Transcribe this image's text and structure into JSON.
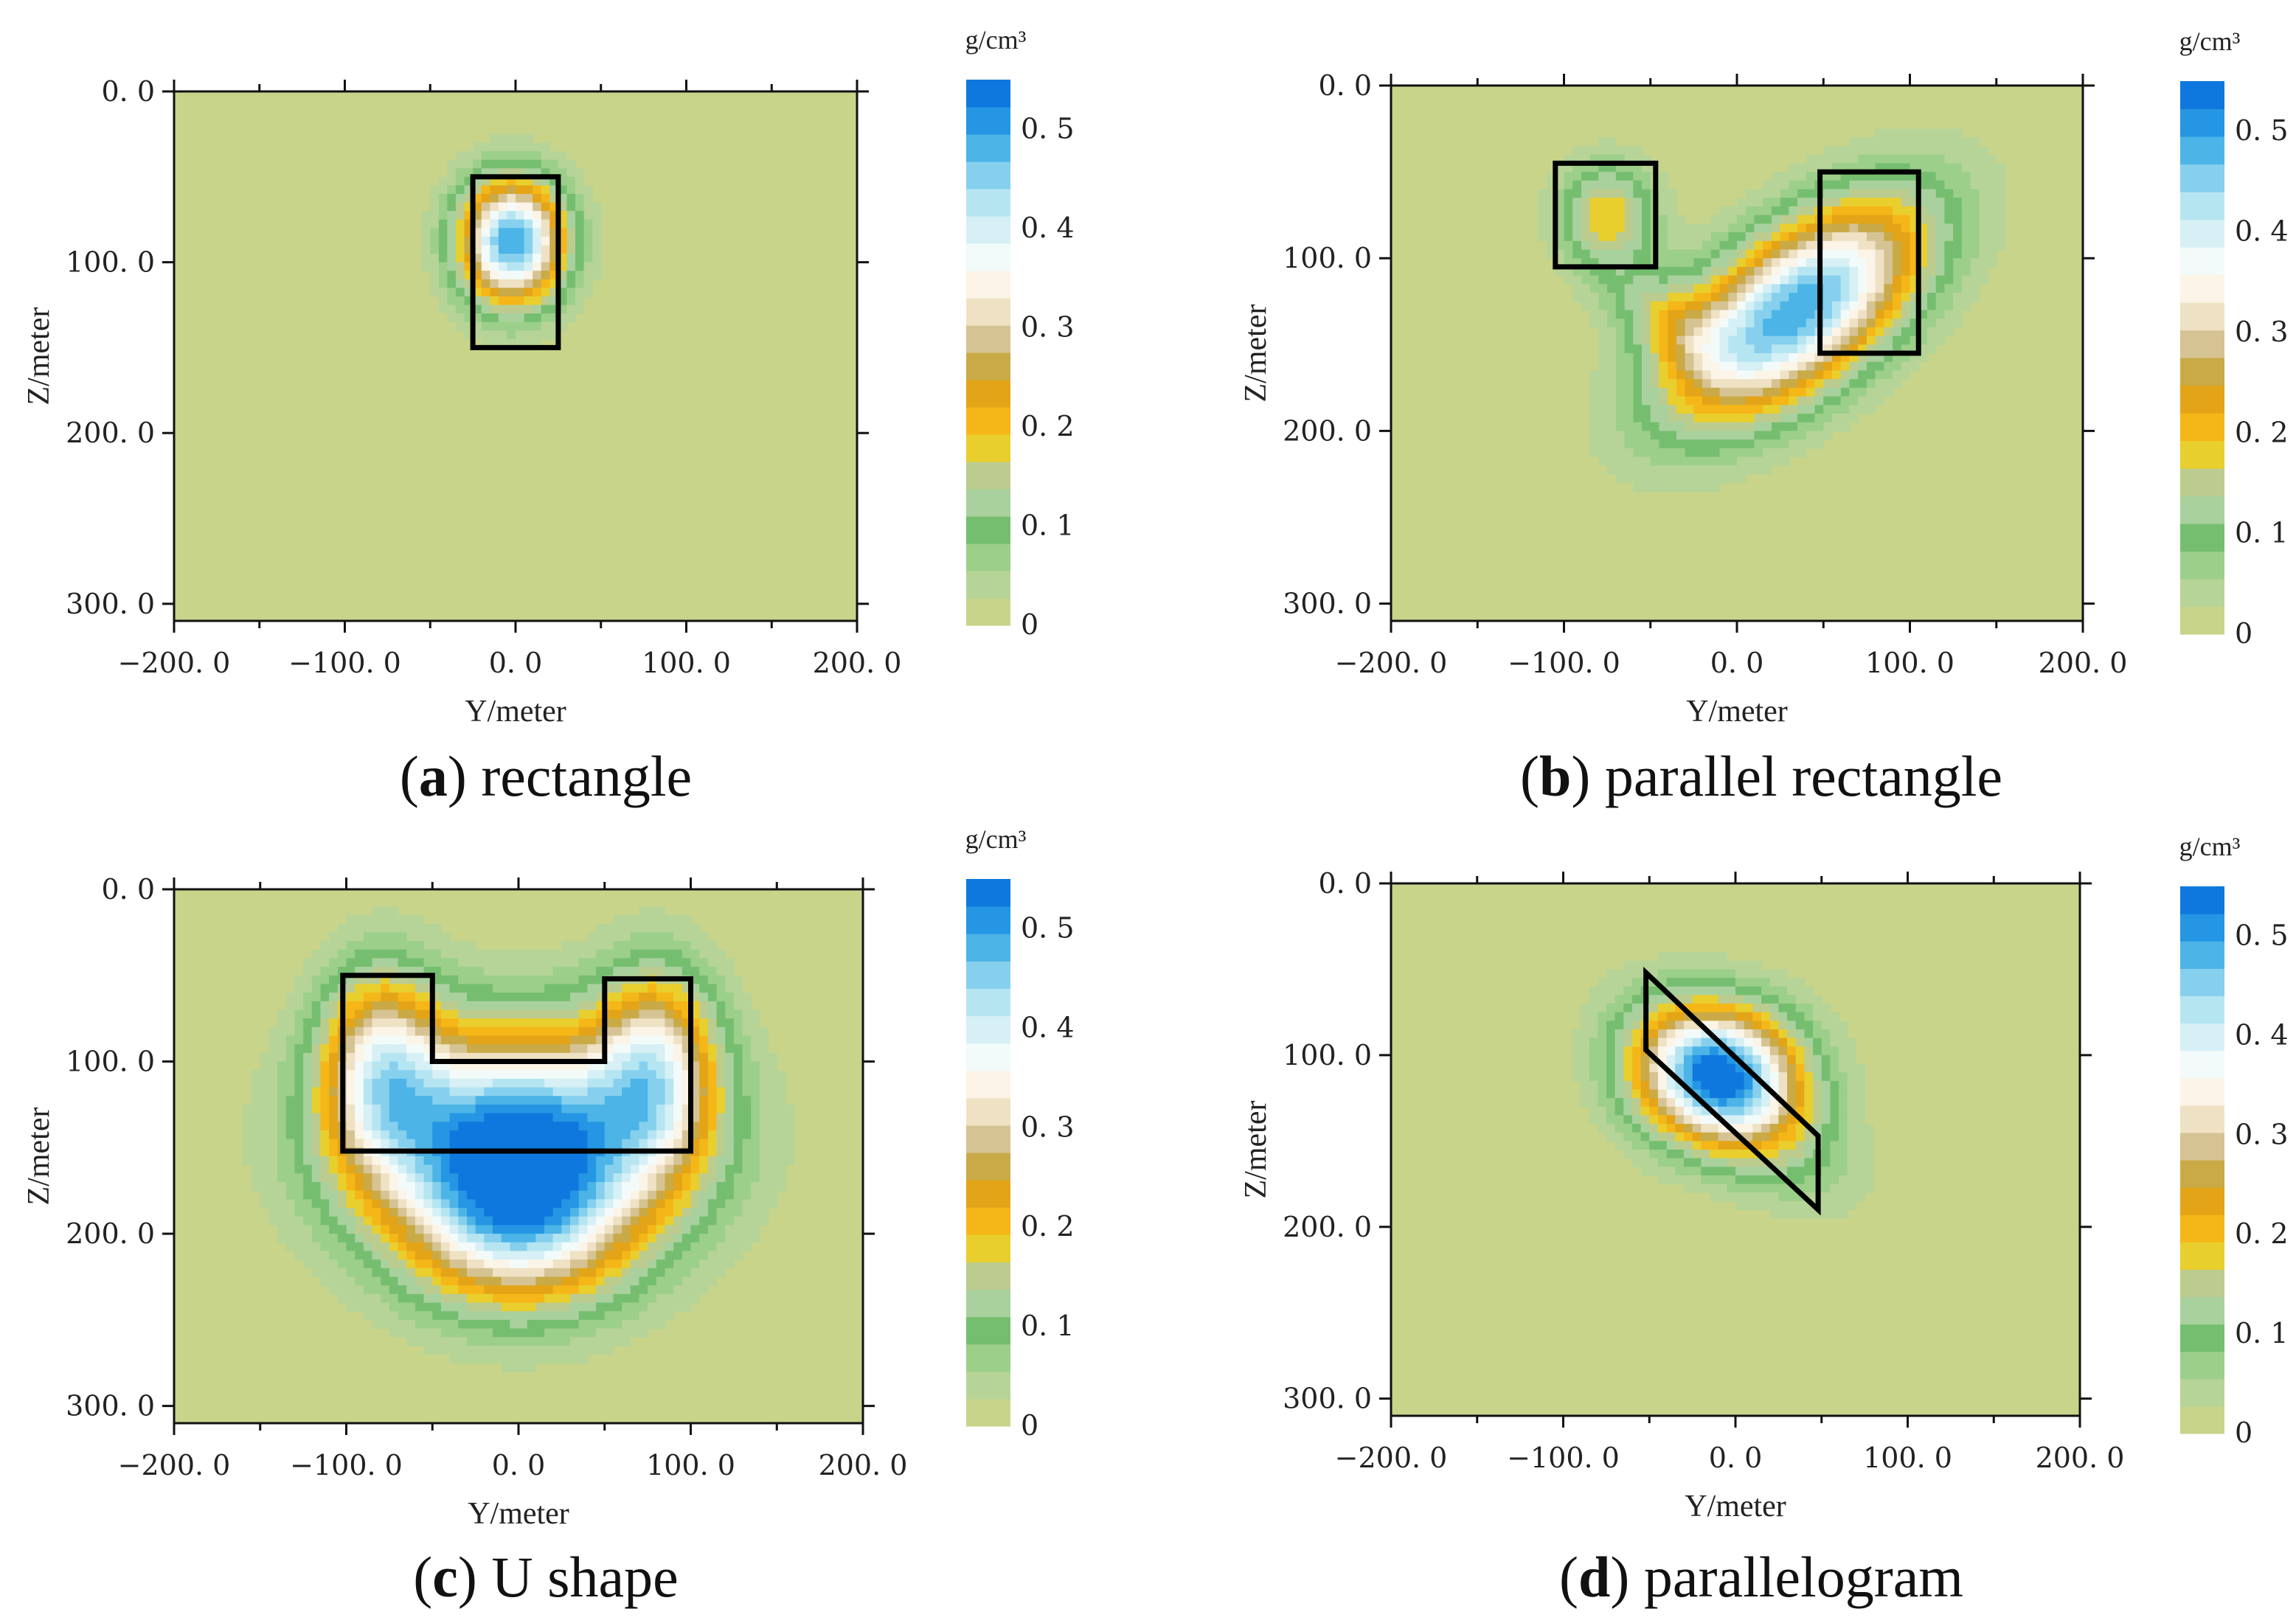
{
  "figure": {
    "colorbar_unit": "g/cm³"
  },
  "colors": {
    "background_field": "#c8d48a",
    "outline": "#000000",
    "colormap": [
      "#c8d48a",
      "#b6d497",
      "#9ccf8a",
      "#76be6f",
      "#a9d19e",
      "#bccc8f",
      "#e9cf2d",
      "#f5b718",
      "#e3a417",
      "#c9aa47",
      "#d6c393",
      "#efe1c4",
      "#fbf4e7",
      "#f2fbf9",
      "#d6f0f5",
      "#b6e5f2",
      "#86d0ee",
      "#4cb4e6",
      "#2596e3",
      "#0f78de"
    ]
  },
  "chart_data": [
    {
      "type": "heatmap",
      "id": "a",
      "caption_label": "a",
      "caption_text": "rectangle",
      "xlabel": "Y/meter",
      "ylabel": "Z/meter",
      "x_ticks": [
        "−200. 0",
        "−100. 0",
        "0. 0",
        "100. 0",
        "200. 0"
      ],
      "y_ticks": [
        "0. 0",
        "100. 0",
        "200. 0",
        "300. 0"
      ],
      "xlim": [
        -200,
        200
      ],
      "ylim": [
        0,
        310
      ],
      "colorbar": {
        "range": [
          0,
          0.55
        ],
        "ticks": [
          "0",
          "0. 1",
          "0. 2",
          "0. 3",
          "0. 4",
          "0. 5"
        ]
      },
      "anomaly_blobs": [
        {
          "cx": -2,
          "cz": 88,
          "rx": 22,
          "rz": 26,
          "amp": 0.9,
          "rot": 0
        }
      ],
      "outlines": [
        [
          [
            -25,
            50
          ],
          [
            25,
            50
          ],
          [
            25,
            150
          ],
          [
            -25,
            150
          ]
        ]
      ]
    },
    {
      "type": "heatmap",
      "id": "b",
      "caption_label": "b",
      "caption_text": "parallel rectangle",
      "xlabel": "Y/meter",
      "ylabel": "Z/meter",
      "x_ticks": [
        "−200. 0",
        "−100. 0",
        "0. 0",
        "100. 0",
        "200. 0"
      ],
      "y_ticks": [
        "0. 0",
        "100. 0",
        "200. 0",
        "300. 0"
      ],
      "xlim": [
        -200,
        200
      ],
      "ylim": [
        0,
        310
      ],
      "colorbar": {
        "range": [
          0,
          0.55
        ],
        "ticks": [
          "0",
          "0. 1",
          "0. 2",
          "0. 3",
          "0. 4",
          "0. 5"
        ]
      },
      "anomaly_blobs": [
        {
          "cx": -75,
          "cz": 75,
          "rx": 20,
          "rz": 22,
          "amp": 0.34,
          "rot": 0
        },
        {
          "cx": 35,
          "cz": 130,
          "rx": 60,
          "rz": 30,
          "amp": 0.9,
          "rot": -38
        },
        {
          "cx": -40,
          "cz": 135,
          "rx": 30,
          "rz": 16,
          "amp": 0.2,
          "rot": 35
        }
      ],
      "outlines": [
        [
          [
            -105,
            45
          ],
          [
            -47,
            45
          ],
          [
            -47,
            105
          ],
          [
            -105,
            105
          ]
        ],
        [
          [
            48,
            50
          ],
          [
            105,
            50
          ],
          [
            105,
            155
          ],
          [
            48,
            155
          ]
        ]
      ]
    },
    {
      "type": "heatmap",
      "id": "c",
      "caption_label": "c",
      "caption_text": "U shape",
      "xlabel": "Y/meter",
      "ylabel": "Z/meter",
      "x_ticks": [
        "−200. 0",
        "−100. 0",
        "0. 0",
        "100. 0",
        "200. 0"
      ],
      "y_ticks": [
        "0. 0",
        "100. 0",
        "200. 0",
        "300. 0"
      ],
      "xlim": [
        -200,
        200
      ],
      "ylim": [
        0,
        310
      ],
      "colorbar": {
        "range": [
          0,
          0.55
        ],
        "ticks": [
          "0",
          "0. 1",
          "0. 2",
          "0. 3",
          "0. 4",
          "0. 5"
        ]
      },
      "anomaly_blobs": [
        {
          "cx": 0,
          "cz": 145,
          "rx": 65,
          "rz": 45,
          "amp": 0.95,
          "rot": 0
        },
        {
          "cx": -80,
          "cz": 100,
          "rx": 25,
          "rz": 40,
          "amp": 0.5,
          "rot": 0
        },
        {
          "cx": 80,
          "cz": 100,
          "rx": 25,
          "rz": 40,
          "amp": 0.5,
          "rot": 0
        },
        {
          "cx": 0,
          "cz": 200,
          "rx": 45,
          "rz": 35,
          "amp": 0.45,
          "rot": 0
        }
      ],
      "outlines": [
        [
          [
            -102,
            50
          ],
          [
            -50,
            50
          ],
          [
            -50,
            100
          ],
          [
            50,
            100
          ],
          [
            50,
            52
          ],
          [
            100,
            52
          ],
          [
            100,
            152
          ],
          [
            -102,
            152
          ]
        ]
      ]
    },
    {
      "type": "heatmap",
      "id": "d",
      "caption_label": "d",
      "caption_text": "parallelogram",
      "xlabel": "Y/meter",
      "ylabel": "Z/meter",
      "x_ticks": [
        "−200. 0",
        "−100. 0",
        "0. 0",
        "100. 0",
        "200. 0"
      ],
      "y_ticks": [
        "0. 0",
        "100. 0",
        "200. 0",
        "300. 0"
      ],
      "xlim": [
        -200,
        200
      ],
      "ylim": [
        0,
        310
      ],
      "colorbar": {
        "range": [
          0,
          0.55
        ],
        "ticks": [
          "0",
          "0. 1",
          "0. 2",
          "0. 3",
          "0. 4",
          "0. 5"
        ]
      },
      "anomaly_blobs": [
        {
          "cx": -10,
          "cz": 110,
          "rx": 34,
          "rz": 28,
          "amp": 0.75,
          "rot": 0
        },
        {
          "cx": 0,
          "cz": 125,
          "rx": 50,
          "rz": 25,
          "amp": 0.3,
          "rot": 40
        }
      ],
      "outlines": [
        [
          [
            -52,
            52
          ],
          [
            48,
            147
          ],
          [
            48,
            190
          ],
          [
            -52,
            97
          ]
        ]
      ]
    }
  ]
}
